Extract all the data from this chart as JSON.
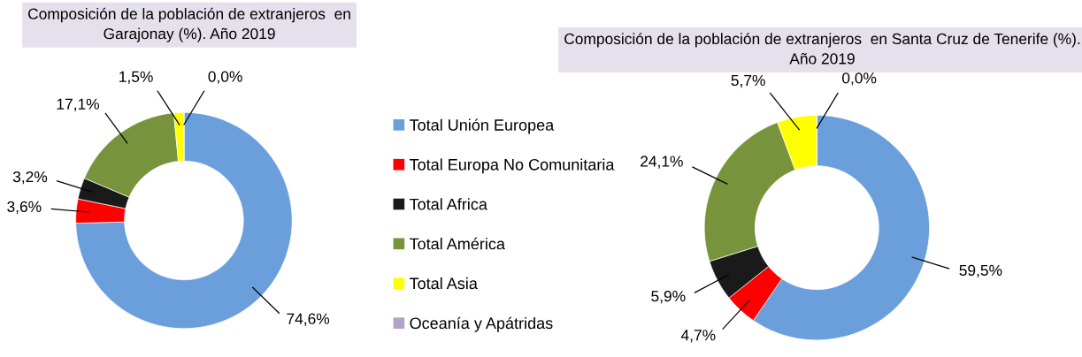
{
  "chart_data": [
    {
      "type": "donut",
      "title": "Composición de la población de extranjeros  en Garajonay (%). Año 2019",
      "categories": [
        "Total Unión Europea",
        "Total Europa No Comunitaria",
        "Total Africa",
        "Total América",
        "Total Asia",
        "Oceanía y Apátridas"
      ],
      "values": [
        74.6,
        3.6,
        3.2,
        17.1,
        1.5,
        0.0
      ],
      "colors": [
        "#6a9fdc",
        "#ff0000",
        "#1a1a1a",
        "#77933c",
        "#ffff00",
        "#b3a2c7"
      ],
      "value_labels": [
        "74,6%",
        "3,6%",
        "3,2%",
        "17,1%",
        "1,5%",
        "0,0%"
      ],
      "legend": "right"
    },
    {
      "type": "donut",
      "title": "Composición de la población de extranjeros  en Santa Cruz de Tenerife (%). Año 2019",
      "categories": [
        null,
        null,
        null,
        null,
        null,
        null
      ],
      "values": [
        59.5,
        4.7,
        5.9,
        24.1,
        5.7,
        0.0
      ],
      "colors": [
        "#6a9fdc",
        "#ff0000",
        "#1a1a1a",
        "#77933c",
        "#ffff00",
        "#b3a2c7"
      ],
      "value_labels": [
        "59,5%",
        "4,7%",
        "5,9%",
        "24,1%",
        "5,7%",
        "0,0%"
      ]
    }
  ]
}
